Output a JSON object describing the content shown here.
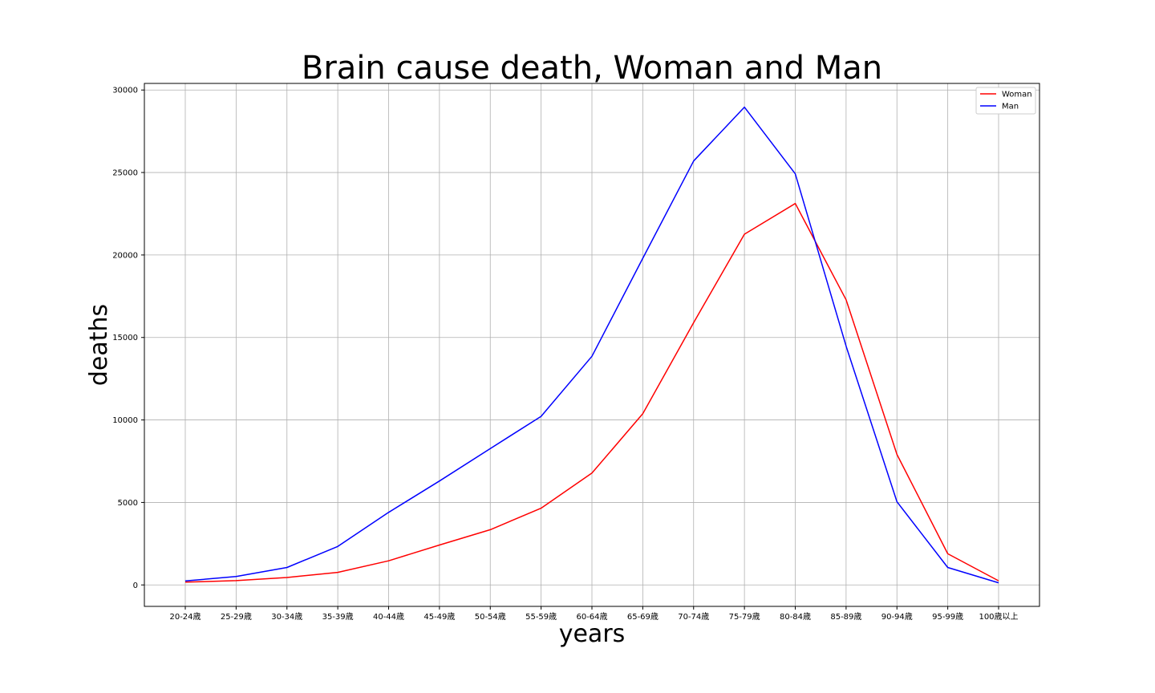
{
  "chart_data": {
    "type": "line",
    "title": "Brain cause death, Woman and Man",
    "xlabel": "years",
    "ylabel": "deaths",
    "categories": [
      "20-24歳",
      "25-29歳",
      "30-34歳",
      "35-39歳",
      "40-44歳",
      "45-49歳",
      "50-54歳",
      "55-59歳",
      "60-64歳",
      "65-69歳",
      "70-74歳",
      "75-79歳",
      "80-84歳",
      "85-89歳",
      "90-94歳",
      "95-99歳",
      "100歳以上"
    ],
    "series": [
      {
        "name": "Woman",
        "color": "#ff0000",
        "values": [
          170,
          260,
          450,
          760,
          1460,
          2420,
          3350,
          4650,
          6780,
          10380,
          15900,
          21260,
          23120,
          17280,
          7910,
          1890,
          250
        ]
      },
      {
        "name": "Man",
        "color": "#0000ff",
        "values": [
          240,
          510,
          1060,
          2330,
          4400,
          6300,
          8270,
          10220,
          13860,
          19800,
          25700,
          28960,
          24920,
          14470,
          5040,
          1060,
          130
        ]
      }
    ],
    "yticks": [
      0,
      5000,
      10000,
      15000,
      20000,
      25000,
      30000
    ],
    "ylim": [
      -1300,
      30400
    ],
    "grid": true,
    "legend": "top-right"
  }
}
